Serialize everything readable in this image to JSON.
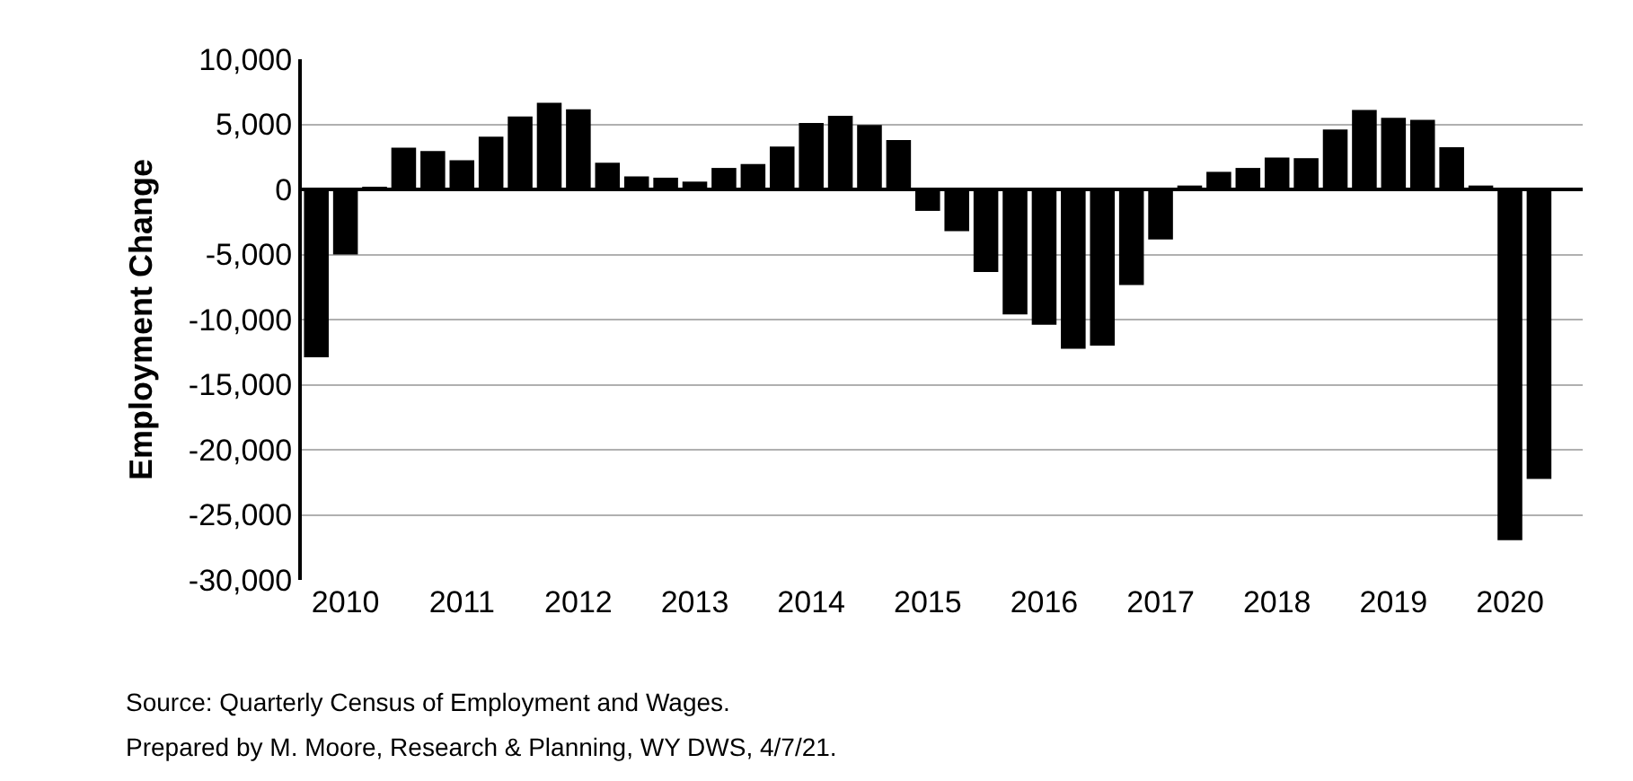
{
  "chart_data": {
    "type": "bar",
    "ylabel": "Employment Change",
    "categories": [
      null,
      "2010",
      null,
      null,
      null,
      "2011",
      null,
      null,
      null,
      "2012",
      null,
      null,
      null,
      "2013",
      null,
      null,
      null,
      "2014",
      null,
      null,
      null,
      "2015",
      null,
      null,
      null,
      "2016",
      null,
      null,
      null,
      "2017",
      null,
      null,
      null,
      "2018",
      null,
      null,
      null,
      "2019",
      null,
      null,
      null,
      "2020",
      null,
      null
    ],
    "values": [
      -12900,
      -5000,
      200,
      3200,
      2950,
      2250,
      4050,
      5600,
      6650,
      6150,
      2050,
      1000,
      900,
      600,
      1650,
      1950,
      3300,
      5100,
      5650,
      4950,
      3800,
      -1650,
      -3200,
      -6350,
      -9600,
      -10400,
      -12250,
      -12000,
      -7350,
      -3850,
      300,
      1350,
      1650,
      2450,
      2400,
      4600,
      6100,
      5500,
      5350,
      3250,
      300,
      -26950,
      -22250,
      null
    ],
    "color": "#000000",
    "ylim": [
      -30000,
      10000
    ],
    "yticks": [
      {
        "value": 10000,
        "label": "10,000"
      },
      {
        "value": 5000,
        "label": "5,000"
      },
      0,
      {
        "value": -5000,
        "label": "-5,000"
      },
      {
        "value": -10000,
        "label": "-10,000"
      },
      {
        "value": -15000,
        "label": "-15,000"
      },
      {
        "value": -20000,
        "label": "-20,000"
      },
      {
        "value": -25000,
        "label": "-25,000"
      },
      {
        "value": -30000,
        "label": "-30,000"
      }
    ],
    "grid": "y",
    "annotations": [
      "Source: Quarterly Census of Employment and Wages.",
      "Prepared by M. Moore, Research & Planning, WY DWS, 4/7/21."
    ]
  }
}
